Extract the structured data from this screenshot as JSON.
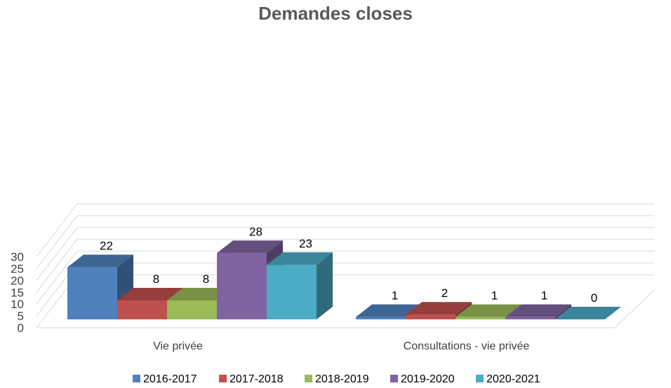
{
  "chart_data": {
    "type": "bar",
    "title": "Demandes closes",
    "categories": [
      "Vie privée",
      "Consultations - vie privée"
    ],
    "series": [
      {
        "name": "2016-2017",
        "values": [
          22,
          1
        ],
        "color": "#4F81BD"
      },
      {
        "name": "2017-2018",
        "values": [
          8,
          2
        ],
        "color": "#C0504D"
      },
      {
        "name": "2018-2019",
        "values": [
          8,
          1
        ],
        "color": "#9BBB59"
      },
      {
        "name": "2019-2020",
        "values": [
          28,
          1
        ],
        "color": "#8064A2"
      },
      {
        "name": "2020-2021",
        "values": [
          23,
          0
        ],
        "color": "#4BACC6"
      }
    ],
    "yticks": [
      0,
      5,
      10,
      15,
      20,
      25,
      30
    ],
    "ylim": [
      0,
      35
    ],
    "grid": true,
    "legend": "bottom",
    "three_d": true
  }
}
